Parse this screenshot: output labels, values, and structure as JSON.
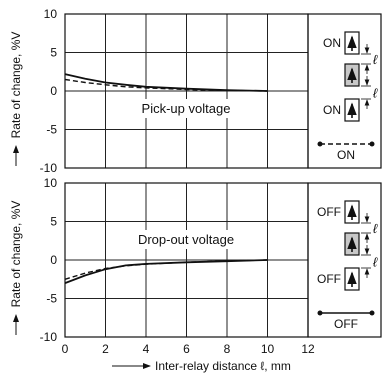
{
  "chart_data": [
    {
      "type": "line",
      "ylabel": "Rate of change, %V",
      "ylim": [
        -10,
        10
      ],
      "xlim": [
        0,
        12
      ],
      "yticks": [
        10,
        5,
        0,
        -5,
        -10
      ],
      "grid": true,
      "annotation": "Pick-up voltage",
      "series": [
        {
          "style": "solid",
          "x": [
            0,
            1,
            2,
            3,
            4,
            6,
            8,
            10
          ],
          "y": [
            2.2,
            1.6,
            1.1,
            0.8,
            0.55,
            0.3,
            0.12,
            0.0
          ]
        },
        {
          "style": "dashed",
          "x": [
            0,
            1,
            2,
            3,
            4,
            6,
            8,
            10
          ],
          "y": [
            1.5,
            1.1,
            0.8,
            0.55,
            0.4,
            0.2,
            0.08,
            0.0
          ]
        }
      ],
      "legend": {
        "top_label": "ON",
        "bottom_label": "ON",
        "line_label": "ON",
        "distance_symbol": "ℓ"
      }
    },
    {
      "type": "line",
      "ylabel": "Rate of change, %V",
      "xlabel": "Inter-relay distance ℓ, mm",
      "ylim": [
        -10,
        10
      ],
      "xlim": [
        0,
        12
      ],
      "xticks": [
        0,
        2,
        4,
        6,
        8,
        10,
        12
      ],
      "yticks": [
        10,
        5,
        0,
        -5,
        -10
      ],
      "grid": true,
      "annotation": "Drop-out voltage",
      "series": [
        {
          "style": "solid",
          "x": [
            0,
            1,
            2,
            3,
            4,
            6,
            8,
            10
          ],
          "y": [
            -3.0,
            -2.0,
            -1.2,
            -0.7,
            -0.5,
            -0.3,
            -0.15,
            0.0
          ]
        },
        {
          "style": "dashed",
          "x": [
            0,
            1,
            2,
            3,
            4,
            6,
            8,
            10
          ],
          "y": [
            -2.5,
            -1.7,
            -1.1,
            -0.75,
            -0.55,
            -0.3,
            -0.12,
            0.0
          ]
        }
      ],
      "legend": {
        "top_label": "OFF",
        "bottom_label": "OFF",
        "line_label": "OFF",
        "distance_symbol": "ℓ"
      }
    }
  ]
}
